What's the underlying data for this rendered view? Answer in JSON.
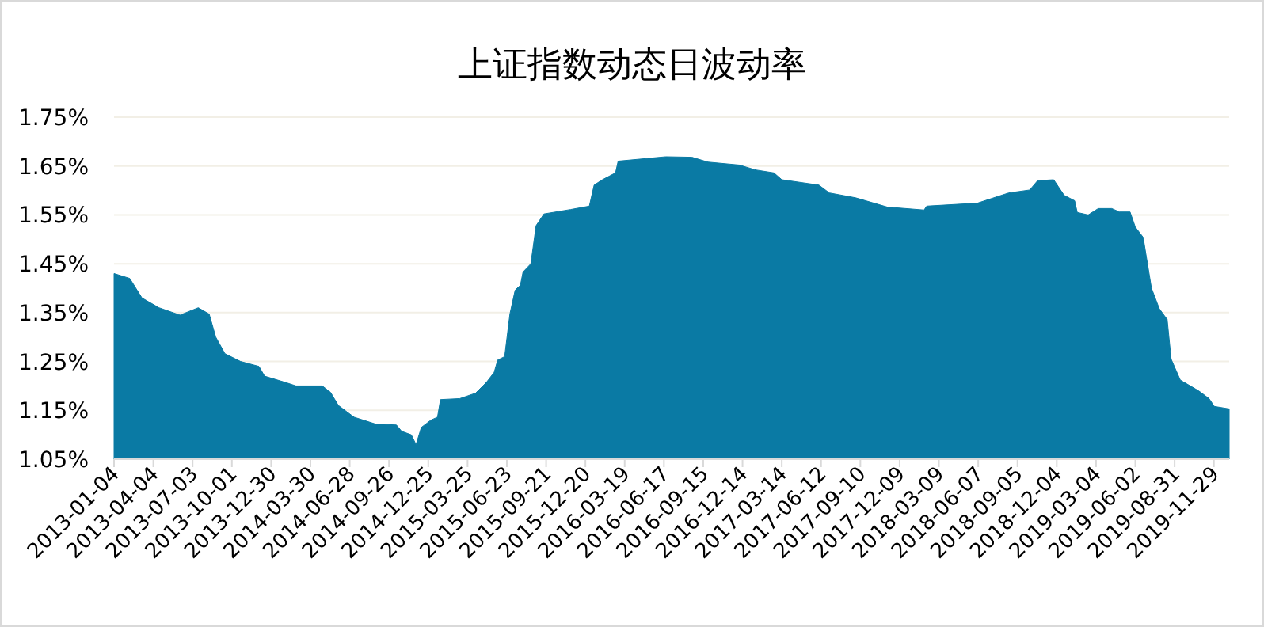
{
  "chart_data": {
    "type": "area",
    "title": "上证指数动态日波动率",
    "color": "#0a7aa4",
    "grid": "y",
    "x": [
      "2013-01-04",
      "2013-02-09",
      "2013-03-09",
      "2013-04-17",
      "2013-06-04",
      "2013-07-16",
      "2013-08-10",
      "2013-08-25",
      "2013-09-15",
      "2013-10-21",
      "2013-12-02",
      "2013-12-15",
      "2014-02-01",
      "2014-02-25",
      "2014-04-26",
      "2014-05-15",
      "2014-06-02",
      "2014-07-08",
      "2014-08-26",
      "2014-10-13",
      "2014-10-25",
      "2014-11-16",
      "2014-11-27",
      "2014-12-09",
      "2014-12-31",
      "2015-01-15",
      "2015-01-22",
      "2015-03-07",
      "2015-04-12",
      "2015-05-07",
      "2015-05-25",
      "2015-06-02",
      "2015-06-18",
      "2015-06-30",
      "2015-07-12",
      "2015-07-24",
      "2015-07-30",
      "2015-08-17",
      "2015-08-29",
      "2015-09-16",
      "2015-11-16",
      "2015-12-29",
      "2016-01-09",
      "2016-01-28",
      "2016-02-27",
      "2016-03-04",
      "2016-06-21",
      "2016-08-20",
      "2016-09-26",
      "2016-12-07",
      "2017-01-13",
      "2017-02-24",
      "2017-03-14",
      "2017-06-07",
      "2017-07-01",
      "2017-08-30",
      "2017-11-11",
      "2018-02-03",
      "2018-02-09",
      "2018-06-05",
      "2018-07-23",
      "2018-08-16",
      "2018-10-03",
      "2018-10-21",
      "2018-11-27",
      "2018-12-21",
      "2019-01-14",
      "2019-01-20",
      "2019-02-14",
      "2019-03-09",
      "2019-04-09",
      "2019-04-27",
      "2019-05-21",
      "2019-06-02",
      "2019-06-20",
      "2019-07-09",
      "2019-07-27",
      "2019-08-14",
      "2019-08-23",
      "2019-09-13",
      "2019-10-25",
      "2019-11-18",
      "2019-11-30",
      "2020-01-03"
    ],
    "values": [
      1.43,
      1.42,
      1.38,
      1.36,
      1.345,
      1.36,
      1.347,
      1.3,
      1.266,
      1.25,
      1.24,
      1.22,
      1.207,
      1.2,
      1.2,
      1.187,
      1.16,
      1.136,
      1.122,
      1.12,
      1.107,
      1.1,
      1.08,
      1.115,
      1.13,
      1.136,
      1.172,
      1.174,
      1.185,
      1.207,
      1.228,
      1.253,
      1.26,
      1.347,
      1.396,
      1.406,
      1.433,
      1.45,
      1.528,
      1.552,
      1.561,
      1.568,
      1.611,
      1.622,
      1.636,
      1.66,
      1.669,
      1.668,
      1.658,
      1.652,
      1.642,
      1.636,
      1.622,
      1.611,
      1.595,
      1.585,
      1.566,
      1.56,
      1.568,
      1.574,
      1.588,
      1.595,
      1.601,
      1.62,
      1.622,
      1.59,
      1.579,
      1.555,
      1.55,
      1.563,
      1.563,
      1.556,
      1.556,
      1.525,
      1.504,
      1.4,
      1.358,
      1.336,
      1.255,
      1.212,
      1.19,
      1.174,
      1.158,
      1.153
    ],
    "xlim": [
      "2013-01-04",
      "2020-01-03"
    ],
    "xticks": [
      "2013-01-04",
      "2013-04-04",
      "2013-07-03",
      "2013-10-01",
      "2013-12-30",
      "2014-03-30",
      "2014-06-28",
      "2014-09-26",
      "2014-12-25",
      "2015-03-25",
      "2015-06-23",
      "2015-09-21",
      "2015-12-20",
      "2016-03-19",
      "2016-06-17",
      "2016-09-15",
      "2016-12-14",
      "2017-03-14",
      "2017-06-12",
      "2017-09-10",
      "2017-12-09",
      "2018-03-09",
      "2018-06-07",
      "2018-09-05",
      "2018-12-04",
      "2019-03-04",
      "2019-06-02",
      "2019-08-31",
      "2019-11-29"
    ],
    "ylim": [
      1.05,
      1.75
    ],
    "yticks": [
      {
        "value": 1.05,
        "label": "1.05%"
      },
      {
        "value": 1.15,
        "label": "1.15%"
      },
      {
        "value": 1.25,
        "label": "1.25%"
      },
      {
        "value": 1.35,
        "label": "1.35%"
      },
      {
        "value": 1.45,
        "label": "1.45%"
      },
      {
        "value": 1.55,
        "label": "1.55%"
      },
      {
        "value": 1.65,
        "label": "1.65%"
      },
      {
        "value": 1.75,
        "label": "1.75%"
      }
    ]
  }
}
